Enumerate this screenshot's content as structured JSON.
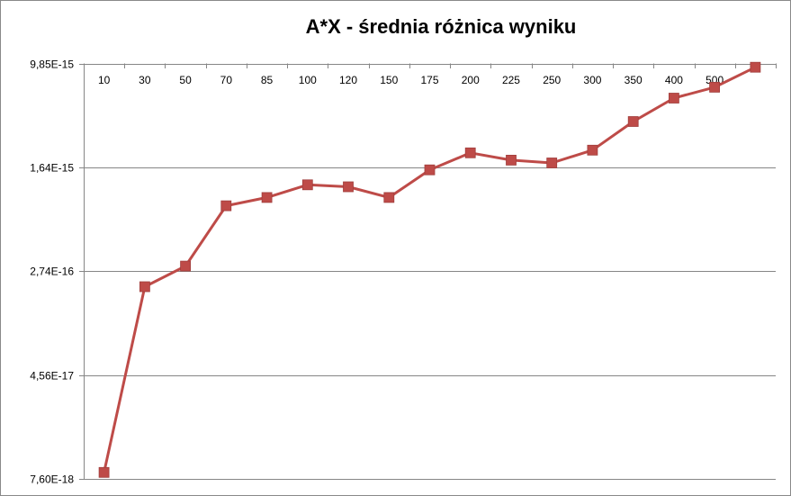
{
  "chart_data": {
    "type": "line",
    "title": "A*X - średnia różnica wyniku",
    "xlabel": "",
    "ylabel": "",
    "categories": [
      "10",
      "30",
      "50",
      "70",
      "85",
      "100",
      "120",
      "150",
      "175",
      "200",
      "225",
      "250",
      "300",
      "350",
      "400",
      "500",
      ""
    ],
    "y_scale": "log",
    "ylim": [
      7.6e-18,
      9.85e-15
    ],
    "y_tick_values": [
      9.85e-15,
      1.64e-15,
      2.74e-16,
      4.56e-17,
      7.6e-18
    ],
    "y_tick_labels": [
      "9,85E-15",
      "1,64E-15",
      "2,74E-16",
      "4,56E-17",
      "7,60E-18"
    ],
    "x_axis_position": "top",
    "grid": true,
    "legend": "none",
    "series": [
      {
        "values": [
          8.5e-18,
          2.1e-16,
          3e-16,
          8.5e-16,
          9.8e-16,
          1.22e-15,
          1.18e-15,
          9.8e-16,
          1.58e-15,
          2.12e-15,
          1.87e-15,
          1.78e-15,
          2.22e-15,
          3.64e-15,
          5.46e-15,
          6.59e-15,
          9.3e-15
        ],
        "color": "#BE4B48"
      }
    ]
  }
}
